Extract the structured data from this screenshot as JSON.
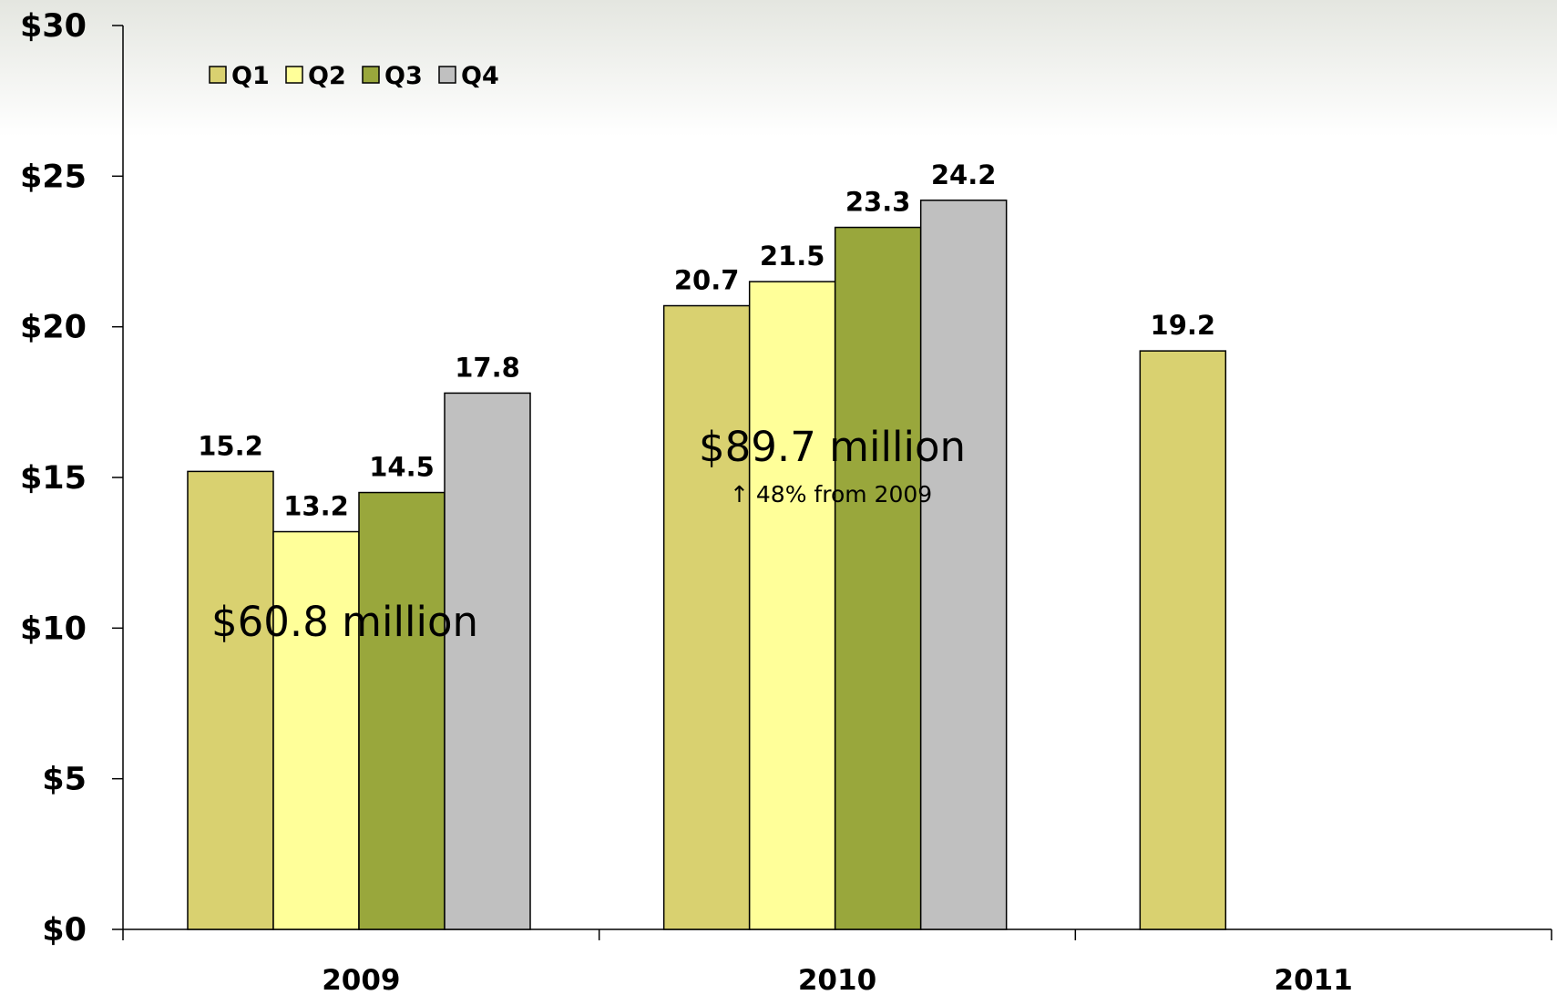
{
  "chart_data": {
    "type": "bar",
    "categories": [
      "2009",
      "2010",
      "2011"
    ],
    "series": [
      {
        "name": "Q1",
        "color": "#d9d170",
        "values": [
          15.2,
          20.7,
          19.2
        ]
      },
      {
        "name": "Q2",
        "color": "#ffff99",
        "values": [
          13.2,
          21.5,
          null
        ]
      },
      {
        "name": "Q3",
        "color": "#99a73c",
        "values": [
          14.5,
          23.3,
          null
        ]
      },
      {
        "name": "Q4",
        "color": "#c0c0c0",
        "values": [
          17.8,
          24.2,
          null
        ]
      }
    ],
    "data_labels": [
      [
        "15.2",
        "13.2",
        "14.5",
        "17.8"
      ],
      [
        "20.7",
        "21.5",
        "23.3",
        "24.2"
      ],
      [
        "19.2",
        "",
        "",
        ""
      ]
    ],
    "ylim": [
      0,
      30
    ],
    "y_ticks": [
      0,
      5,
      10,
      15,
      20,
      25,
      30
    ],
    "y_tick_labels": [
      "$0",
      "$5",
      "$10",
      "$15",
      "$20",
      "$25",
      "$30"
    ],
    "title": "",
    "xlabel": "",
    "ylabel": "",
    "grid": false,
    "legend_position": "top-left",
    "annotations": [
      {
        "category": "2009",
        "main": "$60.8 million",
        "sub": ""
      },
      {
        "category": "2010",
        "main": "$89.7 million",
        "sub": "↑ 48% from 2009"
      }
    ]
  }
}
